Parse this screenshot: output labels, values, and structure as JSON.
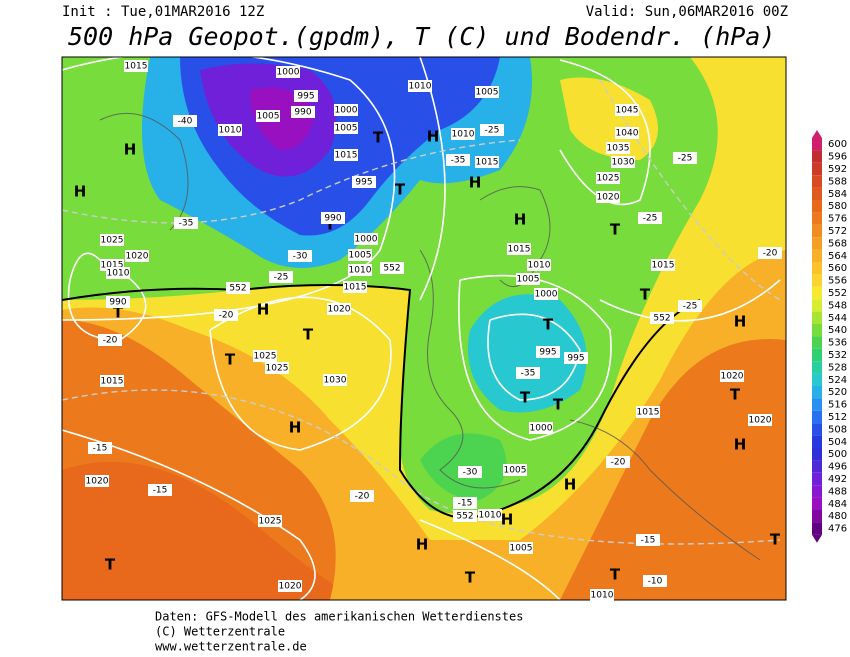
{
  "header": {
    "init": "Init : Tue,01MAR2016 12Z",
    "valid": "Valid: Sun,06MAR2016 00Z",
    "title": "500 hPa Geopot.(gpdm), T (C) und Bodendr. (hPa)"
  },
  "legend": {
    "values": [
      600,
      596,
      592,
      588,
      584,
      580,
      576,
      572,
      568,
      564,
      560,
      556,
      552,
      548,
      544,
      540,
      536,
      532,
      528,
      524,
      520,
      516,
      512,
      508,
      504,
      500,
      496,
      492,
      488,
      484,
      480,
      476
    ],
    "colors": [
      "#d0206c",
      "#c03030",
      "#cc3a28",
      "#d84a24",
      "#e05a20",
      "#e8681c",
      "#ec7a1c",
      "#f08c20",
      "#f49e24",
      "#f8b028",
      "#fcc22c",
      "#fcd430",
      "#f8e830",
      "#d8ec30",
      "#a8e434",
      "#78dc3c",
      "#4cd450",
      "#30d070",
      "#28d0a0",
      "#28c8d0",
      "#28b0e8",
      "#2890f0",
      "#2870f0",
      "#2850e8",
      "#2838e0",
      "#3030d8",
      "#5028d8",
      "#7020d8",
      "#8818d0",
      "#9810c0",
      "#8008a0",
      "#600080"
    ]
  },
  "map_labels": [
    "H",
    "H",
    "H",
    "H",
    "H",
    "H",
    "H",
    "H",
    "H",
    "H",
    "H",
    "H",
    "T",
    "T",
    "T",
    "T",
    "T",
    "T",
    "T",
    "T",
    "T",
    "T",
    "T",
    "T",
    "T",
    "T",
    "T",
    "T",
    "1015",
    "1000",
    "995",
    "990",
    "1005",
    "1010",
    "1010",
    "1005",
    "1010",
    "1015",
    "995",
    "1000",
    "1005",
    "1015",
    "990",
    "1000",
    "1005",
    "1010",
    "1015",
    "1020",
    "1025",
    "1020",
    "1015",
    "1010",
    "990",
    "1015",
    "1025",
    "1025",
    "1030",
    "1020",
    "1025",
    "1020",
    "1000",
    "995",
    "995",
    "1000",
    "1005",
    "1010",
    "1015",
    "1020",
    "1025",
    "1030",
    "1035",
    "1040",
    "1045",
    "1015",
    "1020",
    "1015",
    "1020",
    "1005",
    "1005",
    "1010",
    "1010",
    "-40",
    "-35",
    "-30",
    "-25",
    "-20",
    "-20",
    "-15",
    "-15",
    "-20",
    "-15",
    "-10",
    "-15",
    "-20",
    "-25",
    "-25",
    "-25",
    "-20",
    "-35",
    "-35",
    "-25",
    "-30",
    "552",
    "552",
    "552",
    "552"
  ],
  "footer": {
    "line1": "Daten: GFS-Modell des amerikanischen Wetterdienstes",
    "line2": "(C) Wetterzentrale",
    "line3": "www.wetterzentrale.de"
  }
}
